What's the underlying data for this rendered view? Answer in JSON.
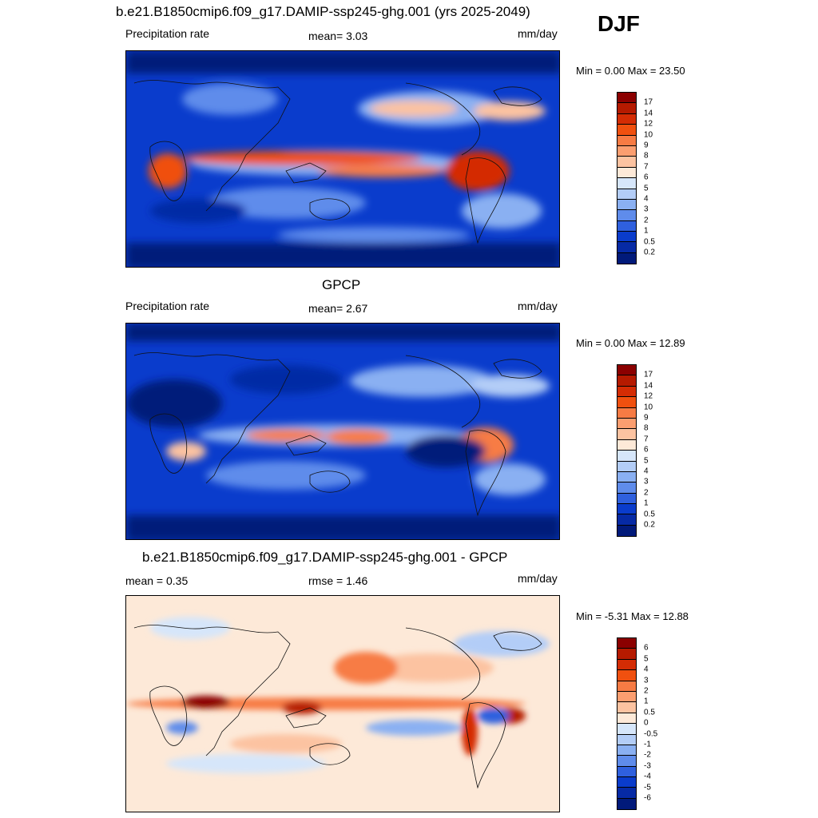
{
  "season": "DJF",
  "panels": [
    {
      "title": "b.e21.B1850cmip6.f09_g17.DAMIP-ssp245-ghg.001 (yrs 2025-2049)",
      "left_label": "Precipitation rate",
      "center_label": "mean=   3.03",
      "units": "mm/day",
      "minmax": "Min =   0.00 Max =  23.50",
      "colorbar": "precip"
    },
    {
      "title": "GPCP",
      "left_label": "Precipitation rate",
      "center_label": "mean=   2.67",
      "units": "mm/day",
      "minmax": "Min =   0.00 Max =  12.89",
      "colorbar": "precip"
    },
    {
      "title": "b.e21.B1850cmip6.f09_g17.DAMIP-ssp245-ghg.001 - GPCP",
      "left_label": "mean =   0.35",
      "center_label": "rmse =   1.46",
      "units": "mm/day",
      "minmax": "Min =  -5.31 Max =  12.88",
      "colorbar": "diff"
    }
  ],
  "colorbars": {
    "precip": {
      "labels": [
        "17",
        "14",
        "12",
        "10",
        "9",
        "8",
        "7",
        "6",
        "5",
        "4",
        "3",
        "2",
        "1",
        "0.5",
        "0.2"
      ],
      "colors": [
        "#8b0000",
        "#b51a00",
        "#d42c04",
        "#f0500f",
        "#f77b44",
        "#fb9e70",
        "#fcc3a1",
        "#fde9d8",
        "#d6e6fa",
        "#b3cdf7",
        "#8ab0f2",
        "#5f8ceb",
        "#2f60de",
        "#0a3ccc",
        "#062aa5",
        "#011a7a"
      ]
    },
    "diff": {
      "labels": [
        "6",
        "5",
        "4",
        "3",
        "2",
        "1",
        "0.5",
        "0",
        "-0.5",
        "-1",
        "-2",
        "-3",
        "-4",
        "-5",
        "-6"
      ],
      "colors": [
        "#8b0000",
        "#b51a00",
        "#d42c04",
        "#f0500f",
        "#f77b44",
        "#fb9e70",
        "#fcc3a1",
        "#fde9d8",
        "#d6e6fa",
        "#b3cdf7",
        "#8ab0f2",
        "#5f8ceb",
        "#2f60de",
        "#0a3ccc",
        "#062aa5",
        "#011a7a"
      ]
    }
  }
}
